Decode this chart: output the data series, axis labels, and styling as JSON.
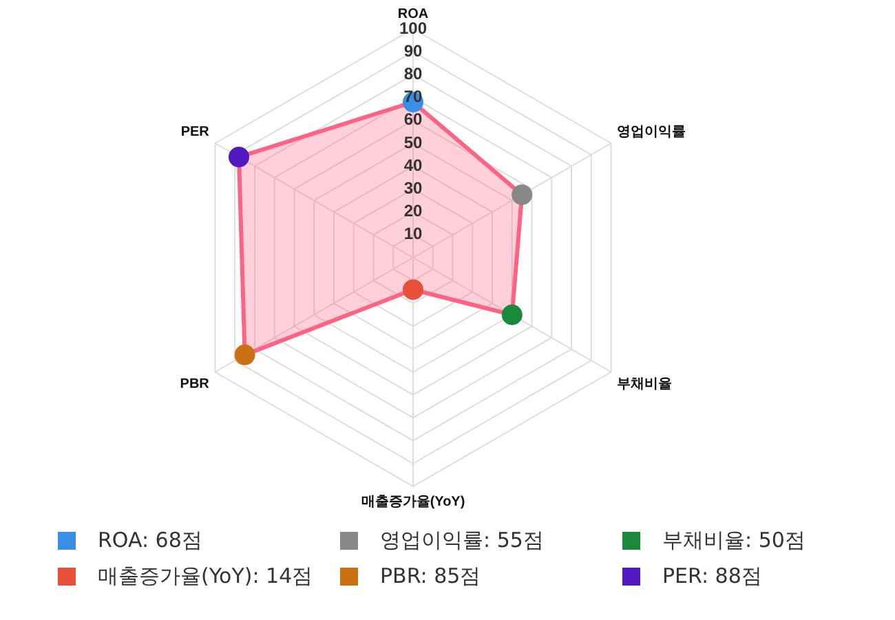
{
  "chart_data": {
    "type": "radar",
    "categories": [
      "ROA",
      "영업이익률",
      "부채비율",
      "매출증가율(YoY)",
      "PBR",
      "PER"
    ],
    "series": [
      {
        "color": "#ff6384",
        "colors": [
          "#3a8ee6",
          "#888888",
          "#1a8a3a",
          "#e8503a",
          "#cc7014",
          "#5219c0"
        ],
        "values": [
          68,
          55,
          50,
          14,
          85,
          88
        ]
      }
    ],
    "annotations": [
      "ROA: 68점",
      "영업이익률: 55점",
      "부채비율: 50점",
      "매출증가율(YoY): 14점",
      "PBR: 85점",
      "PER: 88점"
    ],
    "ylim": [
      0,
      100
    ],
    "yticks": [
      10,
      20,
      30,
      40,
      50,
      60,
      70,
      80,
      90,
      100
    ],
    "grid": true,
    "marker": "circle"
  }
}
